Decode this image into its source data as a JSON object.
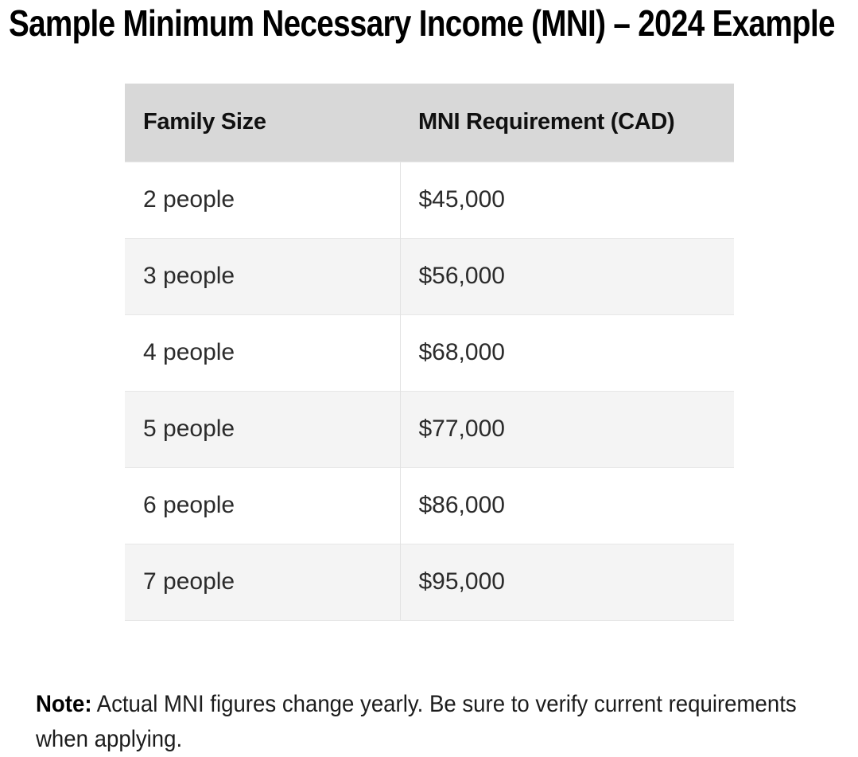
{
  "title": "Sample Minimum Necessary Income (MNI) – 2024 Example",
  "table": {
    "columns": [
      "Family Size",
      "MNI Requirement (CAD)"
    ],
    "rows": [
      {
        "family_size": "2 people",
        "mni": "$45,000"
      },
      {
        "family_size": "3 people",
        "mni": "$56,000"
      },
      {
        "family_size": "4 people",
        "mni": "$68,000"
      },
      {
        "family_size": "5 people",
        "mni": "$77,000"
      },
      {
        "family_size": "6 people",
        "mni": "$86,000"
      },
      {
        "family_size": "7 people",
        "mni": "$95,000"
      }
    ]
  },
  "note": {
    "label": "Note:",
    "text": " Actual MNI figures change yearly. Be sure to verify current requirements when applying."
  },
  "colors": {
    "header_bg": "#d8d8d8",
    "row_alt_bg": "#f4f4f4",
    "row_bg": "#ffffff",
    "border": "#e2e2e2",
    "title_text": "#000000",
    "body_text": "#2b2b2b"
  }
}
